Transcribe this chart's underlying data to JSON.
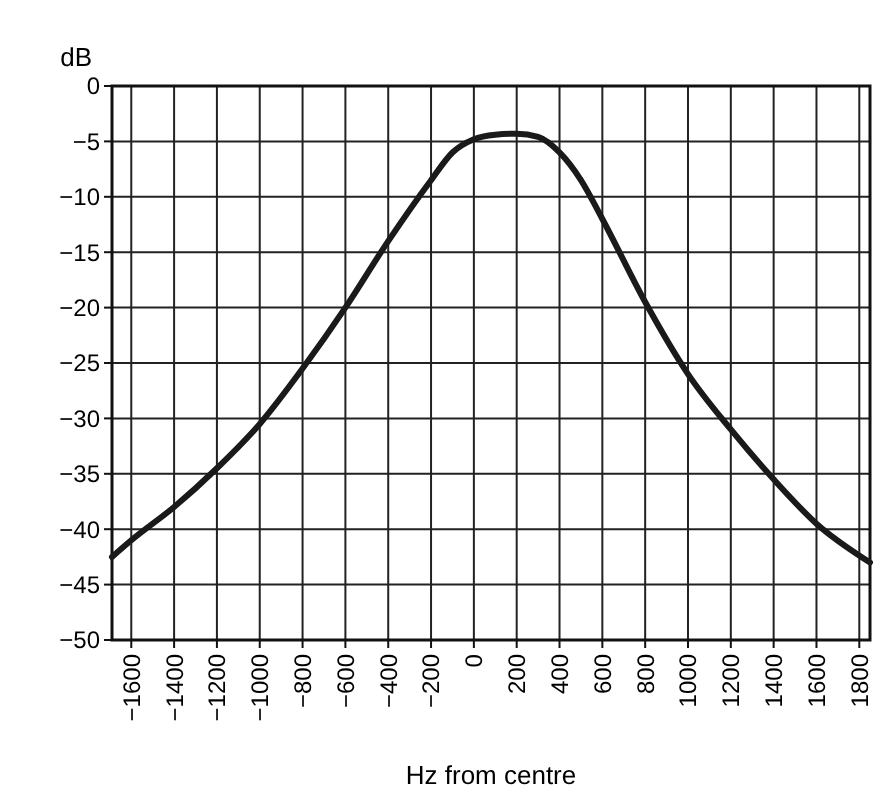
{
  "chart_data": {
    "type": "line",
    "xlabel": "Hz from centre",
    "ylabel": "dB",
    "xlim": [
      -1690,
      1850
    ],
    "ylim": [
      -50,
      0
    ],
    "xticks": [
      -1600,
      -1400,
      -1200,
      -1000,
      -800,
      -600,
      -400,
      -200,
      0,
      200,
      400,
      600,
      800,
      1000,
      1200,
      1400,
      1600,
      1800
    ],
    "yticks": [
      0,
      -5,
      -10,
      -15,
      -20,
      -25,
      -30,
      -35,
      -40,
      -45,
      -50
    ],
    "grid": true,
    "marker": "none",
    "line_style": "solid",
    "series": [
      {
        "color": "#1a1a1a",
        "x": [
          -1690,
          -1600,
          -1400,
          -1200,
          -1000,
          -800,
          -600,
          -400,
          -200,
          -100,
          0,
          100,
          200,
          300,
          400,
          500,
          600,
          800,
          1000,
          1200,
          1400,
          1600,
          1850
        ],
        "values": [
          -42.5,
          -41,
          -38,
          -34.5,
          -30.5,
          -25.5,
          -20,
          -14,
          -8.5,
          -6,
          -4.8,
          -4.4,
          -4.3,
          -4.6,
          -6,
          -8.5,
          -12,
          -19.5,
          -26,
          -31,
          -35.5,
          -39.5,
          -43
        ]
      }
    ]
  }
}
